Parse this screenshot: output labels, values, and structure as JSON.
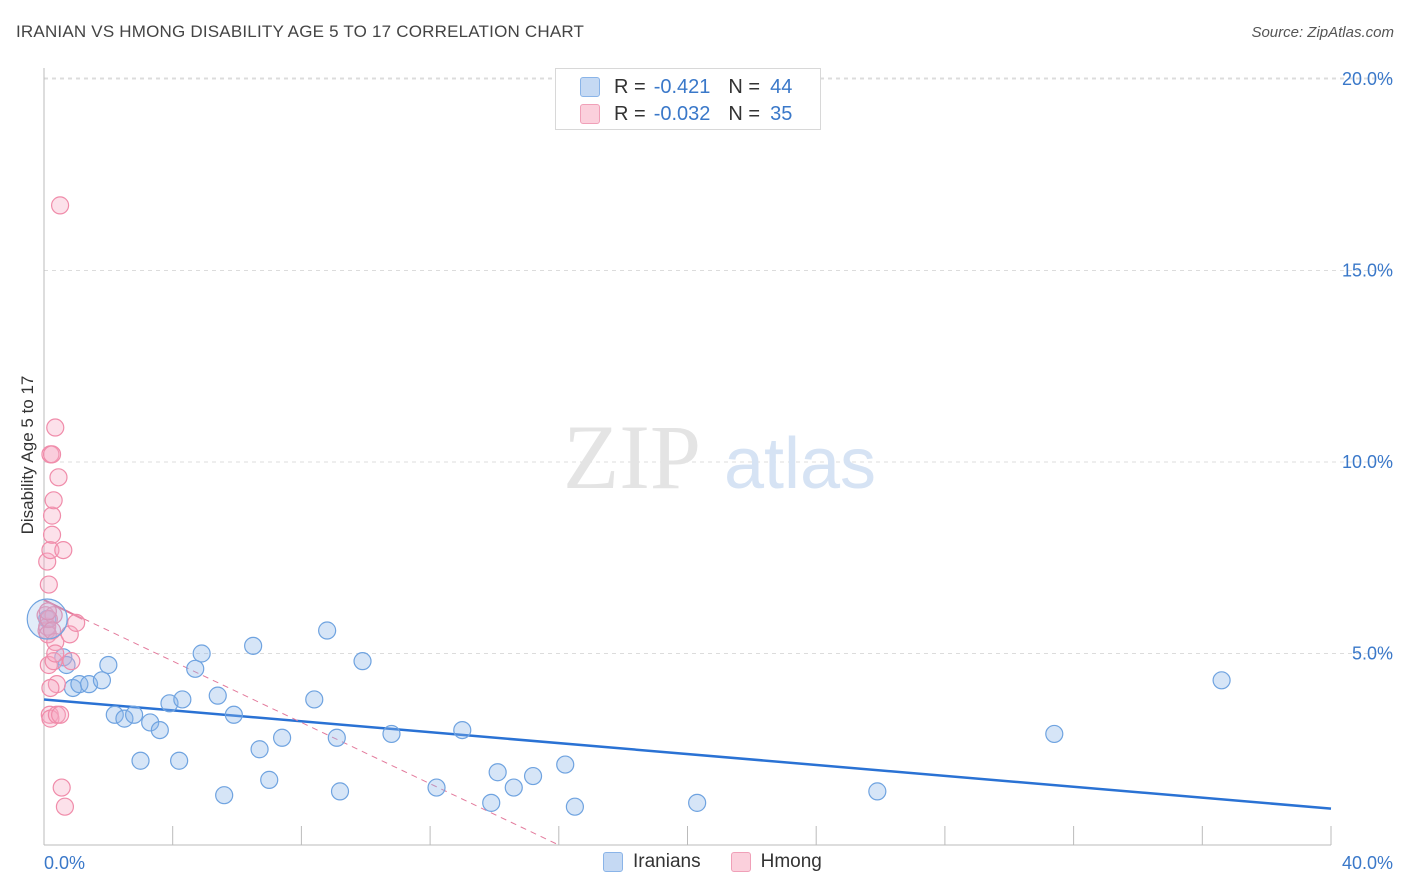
{
  "header": {
    "title": "IRANIAN VS HMONG DISABILITY AGE 5 TO 17 CORRELATION CHART",
    "source": "Source: ZipAtlas.com"
  },
  "watermark": {
    "zip": "ZIP",
    "atlas": "atlas"
  },
  "legend": {
    "rows": [
      {
        "r_label": "R =",
        "r_value": "-0.421",
        "n_label": "N =",
        "n_value": "44",
        "color": "#8ab4e8",
        "fill": "#c5d9f3"
      },
      {
        "r_label": "R =",
        "r_value": "-0.032",
        "n_label": "N =",
        "n_value": "35",
        "color": "#f0a0b8",
        "fill": "#fbd0dc"
      }
    ]
  },
  "bottom_legend": {
    "iranians": "Iranians",
    "hmong": "Hmong"
  },
  "chart_data": {
    "type": "scatter",
    "title": "IRANIAN VS HMONG DISABILITY AGE 5 TO 17 CORRELATION CHART",
    "xlabel": "",
    "ylabel": "Disability Age 5 to 17",
    "xlim": [
      0,
      40
    ],
    "ylim": [
      0,
      20.5
    ],
    "x_tick_labels": {
      "min": "0.0%",
      "max": "40.0%"
    },
    "y_ticks": [
      5,
      10,
      15,
      20
    ],
    "y_tick_labels": [
      "5.0%",
      "10.0%",
      "15.0%",
      "20.0%"
    ],
    "grid": true,
    "colors": {
      "iranians": "#6fa3e0",
      "iranians_line": "#2a72d4",
      "hmong": "#f08caa",
      "hmong_line": "#e37a9c",
      "axis_text": "#3a78c9"
    },
    "series": [
      {
        "name": "Iranians",
        "points": [
          [
            0.1,
            5.9
          ],
          [
            0.6,
            4.9
          ],
          [
            0.7,
            4.7
          ],
          [
            0.9,
            4.1
          ],
          [
            1.1,
            4.2
          ],
          [
            1.4,
            4.2
          ],
          [
            1.8,
            4.3
          ],
          [
            2.0,
            4.7
          ],
          [
            2.2,
            3.4
          ],
          [
            2.5,
            3.3
          ],
          [
            2.8,
            3.4
          ],
          [
            3.0,
            2.2
          ],
          [
            3.3,
            3.2
          ],
          [
            3.6,
            3.0
          ],
          [
            3.9,
            3.7
          ],
          [
            4.2,
            2.2
          ],
          [
            4.3,
            3.8
          ],
          [
            4.7,
            4.6
          ],
          [
            4.9,
            5.0
          ],
          [
            5.4,
            3.9
          ],
          [
            5.6,
            1.3
          ],
          [
            5.9,
            3.4
          ],
          [
            6.5,
            5.2
          ],
          [
            6.7,
            2.5
          ],
          [
            7.0,
            1.7
          ],
          [
            7.4,
            2.8
          ],
          [
            8.4,
            3.8
          ],
          [
            8.8,
            5.6
          ],
          [
            9.1,
            2.8
          ],
          [
            9.2,
            1.4
          ],
          [
            9.9,
            4.8
          ],
          [
            10.8,
            2.9
          ],
          [
            12.2,
            1.5
          ],
          [
            13.0,
            3.0
          ],
          [
            13.9,
            1.1
          ],
          [
            14.1,
            1.9
          ],
          [
            14.6,
            1.5
          ],
          [
            15.2,
            1.8
          ],
          [
            16.2,
            2.1
          ],
          [
            16.5,
            1.0
          ],
          [
            20.3,
            1.1
          ],
          [
            25.9,
            1.4
          ],
          [
            31.4,
            2.9
          ],
          [
            36.6,
            4.3
          ]
        ]
      },
      {
        "name": "Hmong",
        "points": [
          [
            0.05,
            6.0
          ],
          [
            0.08,
            5.6
          ],
          [
            0.1,
            5.7
          ],
          [
            0.12,
            5.5
          ],
          [
            0.15,
            4.7
          ],
          [
            0.18,
            3.4
          ],
          [
            0.2,
            3.3
          ],
          [
            0.1,
            7.4
          ],
          [
            0.15,
            6.8
          ],
          [
            0.2,
            7.7
          ],
          [
            0.25,
            8.1
          ],
          [
            0.25,
            8.6
          ],
          [
            0.3,
            9.0
          ],
          [
            0.2,
            10.2
          ],
          [
            0.25,
            10.2
          ],
          [
            0.35,
            10.9
          ],
          [
            0.45,
            9.6
          ],
          [
            0.5,
            16.7
          ],
          [
            0.6,
            7.7
          ],
          [
            0.3,
            6.0
          ],
          [
            0.35,
            5.3
          ],
          [
            0.4,
            4.2
          ],
          [
            0.3,
            4.8
          ],
          [
            0.4,
            3.4
          ],
          [
            0.5,
            3.4
          ],
          [
            0.55,
            1.5
          ],
          [
            0.65,
            1.0
          ],
          [
            0.8,
            5.5
          ],
          [
            1.0,
            5.8
          ],
          [
            0.85,
            4.8
          ],
          [
            0.2,
            4.1
          ],
          [
            0.15,
            5.9
          ],
          [
            0.25,
            5.6
          ],
          [
            0.35,
            5.0
          ],
          [
            0.12,
            6.1
          ]
        ]
      }
    ],
    "trend_lines": [
      {
        "name": "Iranians",
        "x": [
          0,
          40
        ],
        "y": [
          3.8,
          0.95
        ],
        "style": "solid"
      },
      {
        "name": "Hmong",
        "x": [
          0,
          1.2
        ],
        "y": [
          6.4,
          5.9
        ],
        "style": "solid"
      },
      {
        "name": "Hmong",
        "x": [
          0,
          16
        ],
        "y": [
          6.4,
          0
        ],
        "style": "dashed"
      }
    ]
  }
}
